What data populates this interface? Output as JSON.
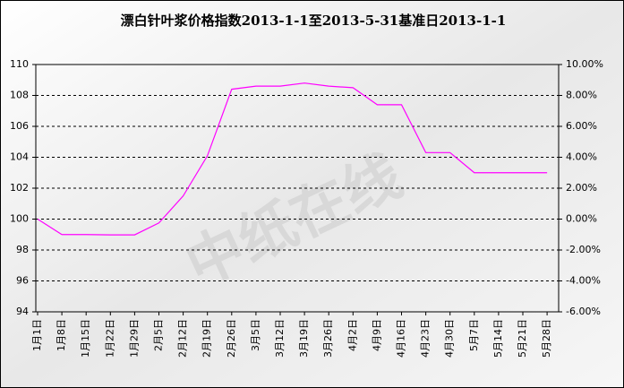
{
  "chart_data": {
    "type": "line",
    "title": "漂白针叶浆价格指数2013-1-1至2013-5-31基准日2013-1-1",
    "watermark": "中纸在线",
    "categories": [
      "1月1日",
      "1月8日",
      "1月15日",
      "1月22日",
      "1月29日",
      "2月5日",
      "2月12日",
      "2月19日",
      "2月26日",
      "3月5日",
      "3月12日",
      "3月19日",
      "3月26日",
      "4月2日",
      "4月9日",
      "4月16日",
      "4月23日",
      "4月30日",
      "5月7日",
      "5月14日",
      "5月21日",
      "5月28日"
    ],
    "series": [
      {
        "name": "漂白针叶浆价格指数",
        "color": "#ff00ff",
        "values": [
          100,
          99,
          99,
          98.98,
          98.98,
          99.75,
          101.5,
          104.1,
          108.4,
          108.6,
          108.6,
          108.8,
          108.6,
          108.5,
          107.4,
          107.4,
          104.3,
          104.3,
          103,
          103,
          103,
          103
        ]
      }
    ],
    "ylim": [
      94,
      110
    ],
    "yticks": [
      94,
      96,
      98,
      100,
      102,
      104,
      106,
      108,
      110
    ],
    "y2lim": [
      -6,
      10
    ],
    "y2ticks": [
      {
        "value": -6,
        "label": "-6.00%"
      },
      {
        "value": -4,
        "label": "-4.00%"
      },
      {
        "value": -2,
        "label": "-2.00%"
      },
      {
        "value": 0,
        "label": "0.00%"
      },
      {
        "value": 2,
        "label": "2.00%"
      },
      {
        "value": 4,
        "label": "4.00%"
      },
      {
        "value": 6,
        "label": "6.00%"
      },
      {
        "value": 8,
        "label": "8.00%"
      },
      {
        "value": 10,
        "label": "10.00%"
      }
    ],
    "grid": true
  }
}
